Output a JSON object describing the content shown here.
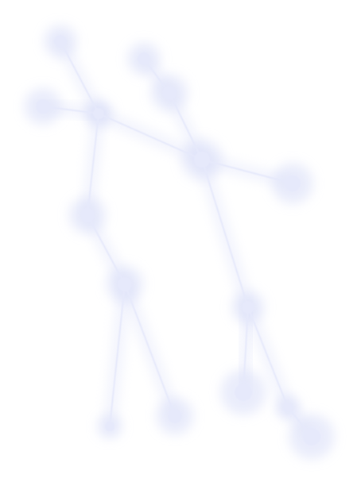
{
  "graphic": {
    "subject": "constellation",
    "node_color": "#e6e9fb",
    "edge_color": "#e6e9fb",
    "glow_color": "#d9def8",
    "background": "#ffffff"
  }
}
